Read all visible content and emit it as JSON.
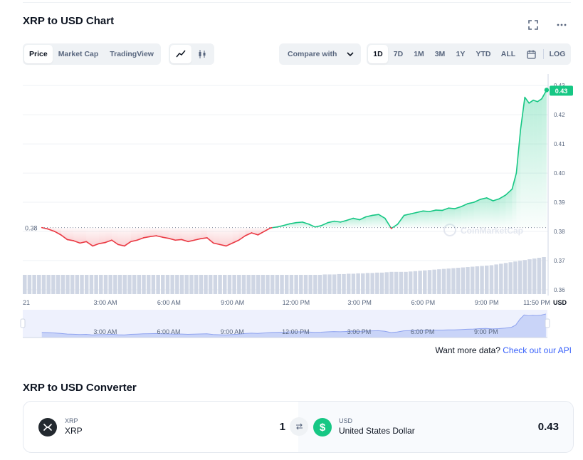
{
  "header": {
    "title": "XRP to USD Chart"
  },
  "icons": {
    "expand": "expand-icon",
    "more": "more-icon",
    "calendar": "calendar-icon"
  },
  "view_tabs": [
    {
      "label": "Price",
      "active": true
    },
    {
      "label": "Market Cap",
      "active": false
    },
    {
      "label": "TradingView",
      "active": false
    }
  ],
  "chart_types": [
    {
      "name": "line-chart-icon",
      "active": true
    },
    {
      "name": "candlestick-icon",
      "active": false
    }
  ],
  "compare": {
    "label": "Compare with"
  },
  "ranges": [
    {
      "label": "1D",
      "active": true
    },
    {
      "label": "7D",
      "active": false
    },
    {
      "label": "1M",
      "active": false
    },
    {
      "label": "3M",
      "active": false
    },
    {
      "label": "1Y",
      "active": false
    },
    {
      "label": "YTD",
      "active": false
    },
    {
      "label": "ALL",
      "active": false
    }
  ],
  "log_label": "LOG",
  "chart_data": {
    "type": "area",
    "title": "",
    "x_tick_labels": [
      "21",
      "3:00 AM",
      "6:00 AM",
      "9:00 AM",
      "12:00 PM",
      "3:00 PM",
      "6:00 PM",
      "9:00 PM",
      "11:50 PM"
    ],
    "y_ticks": [
      0.36,
      0.37,
      0.38,
      0.39,
      0.4,
      0.41,
      0.42,
      0.43
    ],
    "y_tick_labels": [
      "0.36",
      "0.37",
      "0.38",
      "0.39",
      "0.40",
      "0.41",
      "0.42",
      "0.43"
    ],
    "ylim": [
      0.3585,
      0.4325
    ],
    "xlim_hours": [
      -0.9,
      23.9
    ],
    "y_unit_label": "USD",
    "reference_price": 0.3813,
    "reference_label": "0.38",
    "current_price_label": "0.43",
    "watermark": "CoinMarketCap",
    "colors": {
      "up": "#16c784",
      "down": "#ea3943",
      "volume": "#cfd6e4",
      "navigator": "#bcc8f5"
    },
    "series": [
      {
        "x_hours": [
          0,
          0.3,
          0.6,
          0.9,
          1.2,
          1.5,
          1.8,
          2.1,
          2.4,
          2.7,
          3.0,
          3.3,
          3.6,
          3.9,
          4.2,
          4.5,
          4.8,
          5.1,
          5.4,
          5.7,
          6.0,
          6.3,
          6.6,
          6.9,
          7.2,
          7.5,
          7.8,
          8.1,
          8.4,
          8.7,
          9.0,
          9.3,
          9.6,
          9.9,
          10.2,
          10.5,
          10.8,
          11.1,
          11.4,
          11.7,
          12.0,
          12.3,
          12.6,
          12.9,
          13.2,
          13.5,
          13.8,
          14.1,
          14.4,
          14.7,
          15.0,
          15.3,
          15.6,
          15.9,
          16.2,
          16.5,
          16.8,
          17.1,
          17.4,
          17.7,
          18.0,
          18.3,
          18.6,
          18.9,
          19.2,
          19.5,
          19.8,
          20.1,
          20.4,
          20.7,
          21.0,
          21.3,
          21.6,
          21.9,
          22.2,
          22.4,
          22.6,
          22.8,
          23.0,
          23.2,
          23.4,
          23.6,
          23.83
        ],
        "values": [
          0.3813,
          0.3808,
          0.38,
          0.3788,
          0.3772,
          0.3768,
          0.376,
          0.3765,
          0.375,
          0.3758,
          0.3762,
          0.377,
          0.3755,
          0.375,
          0.3765,
          0.377,
          0.3778,
          0.3782,
          0.3785,
          0.378,
          0.3776,
          0.377,
          0.3772,
          0.3765,
          0.377,
          0.3775,
          0.3778,
          0.376,
          0.3755,
          0.375,
          0.376,
          0.377,
          0.3785,
          0.3795,
          0.3788,
          0.38,
          0.3812,
          0.3815,
          0.382,
          0.3826,
          0.383,
          0.3832,
          0.3825,
          0.3815,
          0.382,
          0.383,
          0.3835,
          0.3832,
          0.3838,
          0.3845,
          0.384,
          0.385,
          0.3855,
          0.3858,
          0.3845,
          0.381,
          0.3825,
          0.3855,
          0.386,
          0.3865,
          0.387,
          0.3868,
          0.3873,
          0.3872,
          0.388,
          0.3878,
          0.3885,
          0.3895,
          0.39,
          0.391,
          0.3915,
          0.3905,
          0.3912,
          0.3925,
          0.3945,
          0.4,
          0.415,
          0.426,
          0.424,
          0.425,
          0.4245,
          0.4255,
          0.4285
        ]
      }
    ],
    "volume_relative": [
      0.52,
      0.52,
      0.52,
      0.52,
      0.52,
      0.52,
      0.52,
      0.52,
      0.52,
      0.52,
      0.52,
      0.52,
      0.52,
      0.52,
      0.52,
      0.52,
      0.52,
      0.52,
      0.52,
      0.52,
      0.52,
      0.52,
      0.52,
      0.52,
      0.52,
      0.52,
      0.52,
      0.52,
      0.52,
      0.52,
      0.52,
      0.52,
      0.52,
      0.52,
      0.52,
      0.52,
      0.52,
      0.52,
      0.52,
      0.52,
      0.52,
      0.52,
      0.52,
      0.52,
      0.52,
      0.52,
      0.52,
      0.52,
      0.52,
      0.52,
      0.52,
      0.52,
      0.52,
      0.52,
      0.52,
      0.52,
      0.52,
      0.52,
      0.52,
      0.52,
      0.52,
      0.52,
      0.52,
      0.53,
      0.53,
      0.53,
      0.54,
      0.54,
      0.55,
      0.55,
      0.56,
      0.56,
      0.57,
      0.57,
      0.58,
      0.58,
      0.59,
      0.6,
      0.6,
      0.6,
      0.6,
      0.61,
      0.62,
      0.63,
      0.64,
      0.65,
      0.66,
      0.67,
      0.68,
      0.69,
      0.7,
      0.71,
      0.72,
      0.73,
      0.74,
      0.75,
      0.76,
      0.77,
      0.78,
      0.8,
      0.82,
      0.84,
      0.86,
      0.88,
      0.9,
      0.92,
      0.94,
      0.96,
      0.98,
      1.0
    ],
    "navigator_tick_labels": [
      "3:00 AM",
      "6:00 AM",
      "9:00 AM",
      "12:00 PM",
      "3:00 PM",
      "6:00 PM",
      "9:00 PM"
    ]
  },
  "more_data": {
    "text": "Want more data?",
    "link": "Check out our API"
  },
  "converter": {
    "title": "XRP to USD Converter",
    "from": {
      "symbol": "XRP",
      "name": "XRP",
      "value": "1"
    },
    "to": {
      "symbol": "USD",
      "name": "United States Dollar",
      "value": "0.43"
    }
  }
}
